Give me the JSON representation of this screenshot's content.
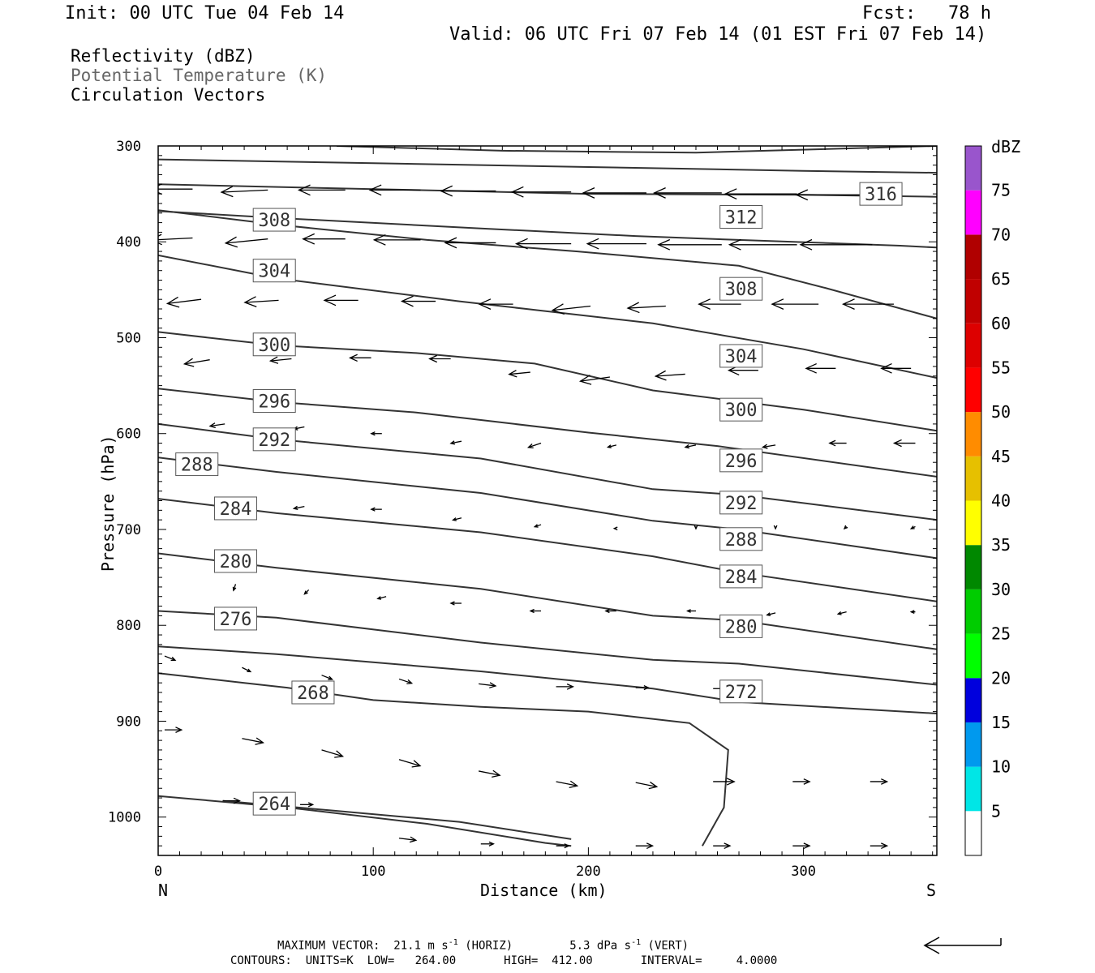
{
  "header": {
    "init": "Init: 00 UTC Tue 04 Feb 14",
    "fcst": "Fcst:   78 h",
    "valid": "Valid: 06 UTC Fri 07 Feb 14 (01 EST Fri 07 Feb 14)"
  },
  "fields": {
    "reflectivity": "Reflectivity (dBZ)",
    "theta": "Potential Temperature (K)",
    "vectors": "Circulation Vectors"
  },
  "footer": {
    "max_vector_prefix": "MAXIMUM VECTOR:  21.1 m s",
    "horiz_suffix": " (HORIZ)",
    "vert_prefix": "5.3 dPa s",
    "vert_suffix": " (VERT)",
    "exponent": "-1",
    "contours": "CONTOURS:  UNITS=K  LOW=   264.00       HIGH=  412.00       INTERVAL=     4.0000"
  },
  "colors": {
    "contour": "#333333",
    "frame": "#000000",
    "scale": [
      {
        "label": "5",
        "color": "#00e6e6"
      },
      {
        "label": "10",
        "color": "#0099ee"
      },
      {
        "label": "15",
        "color": "#0000dd"
      },
      {
        "label": "20",
        "color": "#00ff00"
      },
      {
        "label": "25",
        "color": "#00cc00"
      },
      {
        "label": "30",
        "color": "#008800"
      },
      {
        "label": "35",
        "color": "#ffff00"
      },
      {
        "label": "40",
        "color": "#e6c000"
      },
      {
        "label": "45",
        "color": "#ff8c00"
      },
      {
        "label": "50",
        "color": "#ff0000"
      },
      {
        "label": "55",
        "color": "#dd0000"
      },
      {
        "label": "60",
        "color": "#c00000"
      },
      {
        "label": "65",
        "color": "#b00000"
      },
      {
        "label": "70",
        "color": "#ff00ff"
      },
      {
        "label": "75",
        "color": "#9955cc"
      }
    ],
    "scale_unit": "dBZ"
  },
  "chart_data": {
    "type": "line",
    "xlabel": "Distance (km)",
    "ylabel": "Pressure (hPa)",
    "xlim": [
      0,
      362
    ],
    "ylim": [
      1040,
      300
    ],
    "y_scale": "linear, inverted",
    "x_ticks": [
      "0",
      "100",
      "200",
      "300"
    ],
    "y_ticks": [
      "300",
      "400",
      "500",
      "600",
      "700",
      "800",
      "900",
      "1000"
    ],
    "endpoints": {
      "left": "N",
      "right": "S"
    },
    "series": [
      {
        "label": "316",
        "points": [
          [
            83,
            300
          ],
          [
            160,
            305
          ],
          [
            250,
            307
          ],
          [
            362,
            300
          ]
        ]
      },
      {
        "label": "",
        "points": [
          [
            0,
            314
          ],
          [
            100,
            318
          ],
          [
            200,
            322
          ],
          [
            300,
            326
          ],
          [
            362,
            328
          ]
        ]
      },
      {
        "label": "316",
        "points": [
          [
            0,
            340
          ],
          [
            100,
            345
          ],
          [
            200,
            350
          ],
          [
            300,
            351
          ],
          [
            362,
            353
          ]
        ]
      },
      {
        "label": "312",
        "points": [
          [
            0,
            368
          ],
          [
            55,
            375
          ],
          [
            150,
            386
          ],
          [
            222,
            394
          ],
          [
            270,
            398
          ],
          [
            345,
            404
          ],
          [
            362,
            406
          ]
        ]
      },
      {
        "label": "308",
        "points": [
          [
            0,
            367
          ],
          [
            55,
            382
          ],
          [
            125,
            398
          ],
          [
            195,
            410
          ],
          [
            270,
            425
          ],
          [
            310,
            448
          ],
          [
            362,
            480
          ]
        ]
      },
      {
        "label": "308",
        "points": [
          [
            0,
            414
          ],
          [
            55,
            438
          ],
          [
            140,
            462
          ],
          [
            230,
            485
          ],
          [
            300,
            512
          ],
          [
            362,
            542
          ]
        ]
      },
      {
        "label": "304",
        "points": [
          [
            0,
            494
          ],
          [
            55,
            508
          ],
          [
            120,
            516
          ],
          [
            175,
            527
          ],
          [
            230,
            555
          ],
          [
            300,
            575
          ],
          [
            362,
            597
          ]
        ]
      },
      {
        "label": "300",
        "points": [
          [
            0,
            553
          ],
          [
            55,
            567
          ],
          [
            120,
            578
          ],
          [
            200,
            599
          ],
          [
            260,
            613
          ],
          [
            362,
            645
          ]
        ]
      },
      {
        "label": "296",
        "points": [
          [
            0,
            590
          ],
          [
            55,
            606
          ],
          [
            150,
            626
          ],
          [
            230,
            658
          ],
          [
            270,
            664
          ],
          [
            362,
            690
          ]
        ]
      },
      {
        "label": "292",
        "points": [
          [
            0,
            625
          ],
          [
            55,
            640
          ],
          [
            150,
            662
          ],
          [
            230,
            691
          ],
          [
            270,
            700
          ],
          [
            362,
            730
          ]
        ]
      },
      {
        "label": "288",
        "points": [
          [
            0,
            668
          ],
          [
            55,
            683
          ],
          [
            150,
            703
          ],
          [
            230,
            728
          ],
          [
            270,
            745
          ],
          [
            362,
            775
          ]
        ]
      },
      {
        "label": "284",
        "points": [
          [
            0,
            725
          ],
          [
            55,
            740
          ],
          [
            150,
            762
          ],
          [
            230,
            790
          ],
          [
            270,
            795
          ],
          [
            362,
            825
          ]
        ]
      },
      {
        "label": "280",
        "points": [
          [
            0,
            785
          ],
          [
            55,
            792
          ],
          [
            150,
            818
          ],
          [
            230,
            836
          ],
          [
            270,
            840
          ],
          [
            362,
            862
          ]
        ]
      },
      {
        "label": "276",
        "points": [
          [
            0,
            822
          ],
          [
            55,
            830
          ],
          [
            150,
            848
          ],
          [
            230,
            866
          ],
          [
            270,
            880
          ],
          [
            362,
            892
          ]
        ]
      },
      {
        "label": "272",
        "points": [
          [
            0,
            850
          ],
          [
            40,
            860
          ],
          [
            60,
            865
          ],
          [
            100,
            878
          ],
          [
            150,
            885
          ],
          [
            200,
            890
          ],
          [
            247,
            902
          ],
          [
            265,
            930
          ],
          [
            263,
            990
          ],
          [
            253,
            1030
          ]
        ]
      },
      {
        "label": "268",
        "points": [
          [
            0,
            978
          ],
          [
            60,
            990
          ],
          [
            125,
            1007
          ],
          [
            180,
            1027
          ],
          [
            192,
            1030
          ]
        ]
      },
      {
        "label": "264",
        "points": [
          [
            30,
            983
          ],
          [
            80,
            993
          ],
          [
            140,
            1005
          ],
          [
            192,
            1023
          ]
        ]
      }
    ],
    "contour_labels": [
      {
        "text": "316",
        "x": 336,
        "y": 350
      },
      {
        "text": "308",
        "x": 54,
        "y": 377
      },
      {
        "text": "312",
        "x": 271,
        "y": 374
      },
      {
        "text": "304",
        "x": 54,
        "y": 430
      },
      {
        "text": "308",
        "x": 271,
        "y": 449
      },
      {
        "text": "300",
        "x": 54,
        "y": 507
      },
      {
        "text": "304",
        "x": 271,
        "y": 519
      },
      {
        "text": "296",
        "x": 54,
        "y": 566
      },
      {
        "text": "300",
        "x": 271,
        "y": 575
      },
      {
        "text": "292",
        "x": 54,
        "y": 606
      },
      {
        "text": "296",
        "x": 271,
        "y": 628
      },
      {
        "text": "288",
        "x": 18,
        "y": 632
      },
      {
        "text": "292",
        "x": 271,
        "y": 672
      },
      {
        "text": "284",
        "x": 36,
        "y": 678
      },
      {
        "text": "288",
        "x": 271,
        "y": 710
      },
      {
        "text": "280",
        "x": 36,
        "y": 733
      },
      {
        "text": "284",
        "x": 271,
        "y": 749
      },
      {
        "text": "276",
        "x": 36,
        "y": 793
      },
      {
        "text": "280",
        "x": 271,
        "y": 801
      },
      {
        "text": "268",
        "x": 72,
        "y": 870
      },
      {
        "text": "272",
        "x": 271,
        "y": 869
      },
      {
        "text": "264",
        "x": 54,
        "y": 986
      }
    ],
    "vectors": [
      [
        16,
        345,
        -20,
        0
      ],
      [
        51,
        346,
        -22,
        1
      ],
      [
        87,
        346,
        -22,
        0
      ],
      [
        122,
        346,
        -24,
        0
      ],
      [
        157,
        347,
        -26,
        0
      ],
      [
        192,
        348,
        -28,
        0
      ],
      [
        227,
        349,
        -30,
        0
      ],
      [
        262,
        349,
        -32,
        0
      ],
      [
        297,
        350,
        -34,
        0
      ],
      [
        332,
        351,
        -36,
        0
      ],
      [
        16,
        396,
        -20,
        1
      ],
      [
        51,
        397,
        -20,
        2
      ],
      [
        87,
        397,
        -20,
        0
      ],
      [
        122,
        398,
        -22,
        0
      ],
      [
        157,
        401,
        -24,
        0
      ],
      [
        192,
        402,
        -26,
        0
      ],
      [
        227,
        402,
        -28,
        0
      ],
      [
        262,
        403,
        -30,
        0
      ],
      [
        297,
        403,
        -32,
        0
      ],
      [
        332,
        403,
        -34,
        0
      ],
      [
        20,
        460,
        -16,
        2
      ],
      [
        56,
        461,
        -16,
        1
      ],
      [
        93,
        461,
        -16,
        0
      ],
      [
        129,
        462,
        -16,
        0
      ],
      [
        165,
        465,
        -16,
        0
      ],
      [
        201,
        467,
        -18,
        2
      ],
      [
        236,
        467,
        -18,
        1
      ],
      [
        271,
        465,
        -20,
        0
      ],
      [
        307,
        465,
        -22,
        0
      ],
      [
        342,
        465,
        -24,
        0
      ],
      [
        24,
        523,
        -12,
        2
      ],
      [
        62,
        522,
        -10,
        1
      ],
      [
        99,
        521,
        -10,
        0
      ],
      [
        136,
        522,
        -10,
        0
      ],
      [
        173,
        536,
        -10,
        1
      ],
      [
        210,
        541,
        -14,
        2
      ],
      [
        245,
        538,
        -14,
        1
      ],
      [
        279,
        534,
        -14,
        0
      ],
      [
        315,
        532,
        -14,
        0
      ],
      [
        350,
        532,
        -14,
        0
      ],
      [
        31,
        590,
        -7,
        1
      ],
      [
        68,
        593,
        -5,
        1
      ],
      [
        104,
        600,
        -5,
        0
      ],
      [
        141,
        608,
        -5,
        1
      ],
      [
        178,
        610,
        -6,
        2
      ],
      [
        213,
        612,
        -4,
        1
      ],
      [
        250,
        612,
        -5,
        1
      ],
      [
        287,
        612,
        -6,
        1
      ],
      [
        320,
        610,
        -8,
        0
      ],
      [
        352,
        610,
        -10,
        0
      ],
      [
        68,
        676,
        -5,
        1
      ],
      [
        104,
        679,
        -5,
        0
      ],
      [
        141,
        688,
        -4,
        1
      ],
      [
        178,
        695,
        -3,
        1
      ],
      [
        213,
        699,
        -1,
        0
      ],
      [
        250,
        697,
        0,
        1
      ],
      [
        287,
        697,
        0,
        1
      ],
      [
        320,
        697,
        -1,
        1
      ],
      [
        352,
        697,
        -2,
        1
      ],
      [
        36,
        757,
        -1,
        3
      ],
      [
        70,
        763,
        -2,
        2
      ],
      [
        106,
        770,
        -4,
        1
      ],
      [
        141,
        777,
        -5,
        0
      ],
      [
        178,
        785,
        -5,
        0
      ],
      [
        213,
        785,
        -5,
        0
      ],
      [
        250,
        785,
        -4,
        0
      ],
      [
        287,
        787,
        -4,
        1
      ],
      [
        320,
        786,
        -4,
        1
      ],
      [
        352,
        786,
        -2,
        0
      ],
      [
        3,
        832,
        5,
        2
      ],
      [
        39,
        844,
        4,
        2
      ],
      [
        76,
        852,
        5,
        2
      ],
      [
        112,
        856,
        6,
        2
      ],
      [
        149,
        861,
        8,
        1
      ],
      [
        185,
        864,
        8,
        0
      ],
      [
        222,
        865,
        6,
        0
      ],
      [
        258,
        866,
        6,
        0
      ],
      [
        292,
        866,
        0,
        0
      ],
      [
        328,
        865,
        0,
        0
      ],
      [
        3,
        909,
        8,
        0
      ],
      [
        39,
        918,
        10,
        2
      ],
      [
        76,
        930,
        10,
        3
      ],
      [
        112,
        940,
        10,
        3
      ],
      [
        149,
        952,
        10,
        2
      ],
      [
        185,
        963,
        10,
        2
      ],
      [
        222,
        964,
        10,
        2
      ],
      [
        258,
        963,
        10,
        0
      ],
      [
        295,
        963,
        8,
        0
      ],
      [
        331,
        963,
        8,
        0
      ],
      [
        30,
        983,
        8,
        0
      ],
      [
        66,
        987,
        6,
        0
      ],
      [
        112,
        1022,
        8,
        1
      ],
      [
        150,
        1028,
        6,
        0
      ],
      [
        185,
        1030,
        6,
        0
      ],
      [
        222,
        1030,
        8,
        0
      ],
      [
        258,
        1030,
        8,
        0
      ],
      [
        295,
        1030,
        8,
        0
      ],
      [
        331,
        1030,
        8,
        0
      ]
    ],
    "reference_vector": "21.1 m s-1"
  }
}
